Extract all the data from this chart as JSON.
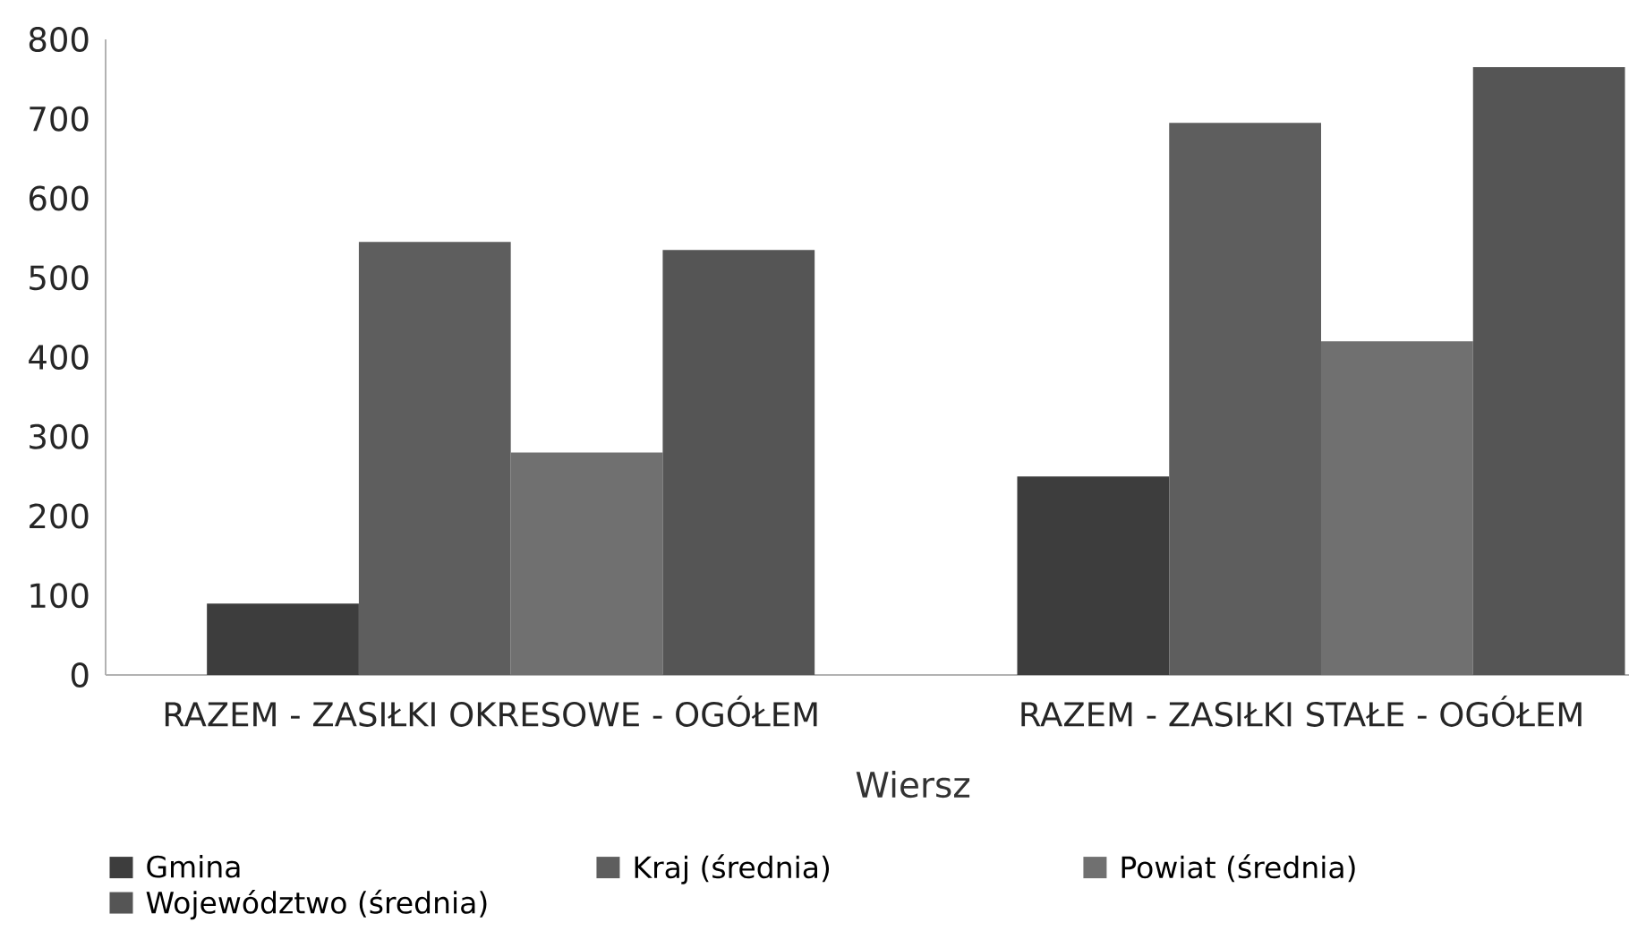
{
  "chart_data": {
    "type": "bar",
    "categories": [
      "RAZEM - ZASIŁKI OKRESOWE - OGÓŁEM",
      "RAZEM - ZASIŁKI STAŁE - OGÓŁEM"
    ],
    "xlabel": "Wiersz",
    "series": [
      {
        "name": "Gmina",
        "color": "#3d3d3d",
        "values": [
          90,
          250
        ]
      },
      {
        "name": "Kraj (średnia)",
        "color": "#5e5e5e",
        "values": [
          545,
          695
        ]
      },
      {
        "name": "Powiat (średnia)",
        "color": "#707070",
        "values": [
          280,
          420
        ]
      },
      {
        "name": "Województwo (średnia)",
        "color": "#555555",
        "values": [
          535,
          765
        ]
      }
    ],
    "ylim": [
      0,
      800
    ],
    "yticks": [
      0,
      100,
      200,
      300,
      400,
      500,
      600,
      700,
      800
    ],
    "grid": false,
    "legend": "bottom"
  }
}
